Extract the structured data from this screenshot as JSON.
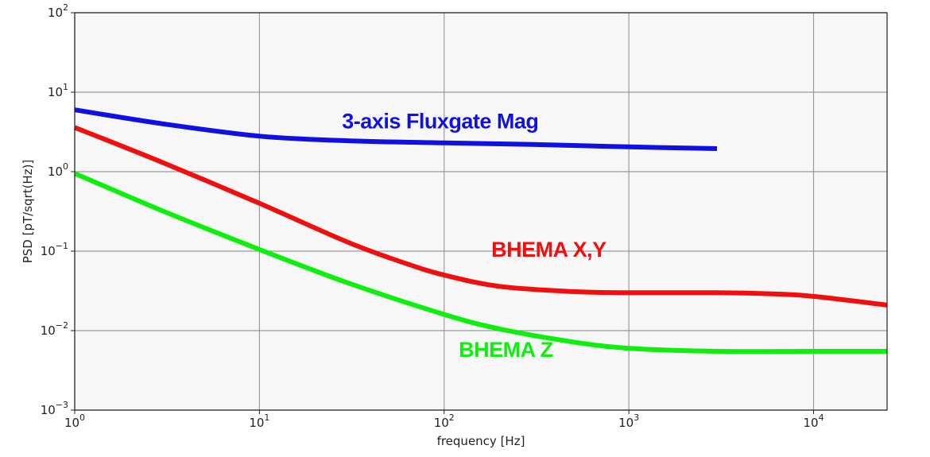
{
  "chart_data": {
    "type": "line",
    "title": "",
    "xlabel": "frequency [Hz]",
    "ylabel": "PSD [pT/sqrt(Hz)]",
    "xscale": "log",
    "yscale": "log",
    "xlim": [
      1,
      25000
    ],
    "ylim": [
      0.001,
      100
    ],
    "grid": true,
    "x_ticks": [
      {
        "value": 1,
        "base": "10",
        "exp": "0"
      },
      {
        "value": 10,
        "base": "10",
        "exp": "1"
      },
      {
        "value": 100,
        "base": "10",
        "exp": "2"
      },
      {
        "value": 1000,
        "base": "10",
        "exp": "3"
      },
      {
        "value": 10000,
        "base": "10",
        "exp": "4"
      }
    ],
    "y_ticks": [
      {
        "value": 0.001,
        "base": "10",
        "exp": "−3"
      },
      {
        "value": 0.01,
        "base": "10",
        "exp": "−2"
      },
      {
        "value": 0.1,
        "base": "10",
        "exp": "−1"
      },
      {
        "value": 1,
        "base": "10",
        "exp": "0"
      },
      {
        "value": 10,
        "base": "10",
        "exp": "1"
      },
      {
        "value": 100,
        "base": "10",
        "exp": "2"
      }
    ],
    "series": [
      {
        "name": "3-axis Fluxgate Mag",
        "color": "#1010e0",
        "label_at": [
          28,
          3.5
        ],
        "x": [
          1,
          3,
          10,
          30,
          100,
          300,
          1000,
          3000
        ],
        "y": [
          6.0,
          4.0,
          2.8,
          2.45,
          2.3,
          2.2,
          2.05,
          1.95
        ]
      },
      {
        "name": "BHEMA X,Y",
        "color": "#ee1010",
        "label_at": [
          180,
          0.085
        ],
        "x": [
          1,
          3,
          10,
          30,
          60,
          100,
          200,
          500,
          1000,
          3000,
          6000,
          10000,
          25000
        ],
        "y": [
          3.6,
          1.3,
          0.4,
          0.13,
          0.072,
          0.05,
          0.036,
          0.031,
          0.03,
          0.03,
          0.029,
          0.027,
          0.021
        ]
      },
      {
        "name": "BHEMA Z",
        "color": "#10ee10",
        "label_at": [
          120,
          0.0047
        ],
        "x": [
          1,
          3,
          10,
          30,
          100,
          200,
          500,
          1000,
          3000,
          10000,
          25000
        ],
        "y": [
          0.95,
          0.32,
          0.105,
          0.04,
          0.016,
          0.0105,
          0.0072,
          0.006,
          0.0055,
          0.0055,
          0.0055
        ]
      }
    ]
  }
}
